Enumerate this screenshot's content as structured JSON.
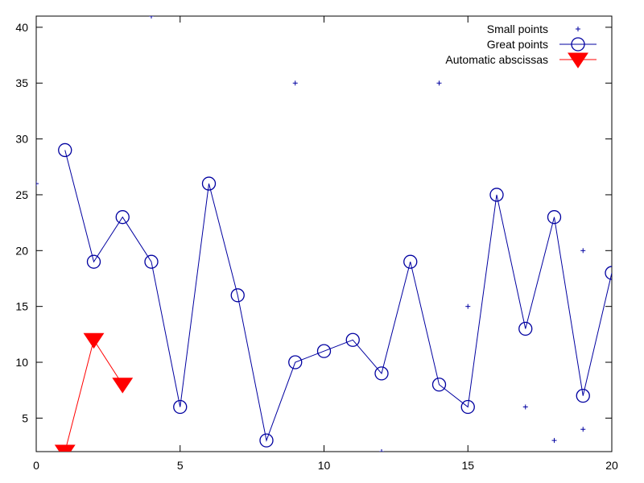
{
  "chart_data": {
    "type": "scatter",
    "xlim": [
      0,
      20
    ],
    "ylim": [
      2,
      41
    ],
    "x_ticks": [
      {
        "value": 0,
        "label": "0"
      },
      {
        "value": 5,
        "label": "5"
      },
      {
        "value": 10,
        "label": "10"
      },
      {
        "value": 15,
        "label": "15"
      },
      {
        "value": 20,
        "label": "20"
      }
    ],
    "y_ticks": [
      {
        "value": 5,
        "label": "5"
      },
      {
        "value": 10,
        "label": "10"
      },
      {
        "value": 15,
        "label": "15"
      },
      {
        "value": 20,
        "label": "20"
      },
      {
        "value": 25,
        "label": "25"
      },
      {
        "value": 30,
        "label": "30"
      },
      {
        "value": 35,
        "label": "35"
      },
      {
        "value": 40,
        "label": "40"
      }
    ],
    "grid": false,
    "legend_position": "top-right",
    "series": [
      {
        "name": "Small points",
        "marker": "plus",
        "line": false,
        "color": "#0000a0",
        "points": [
          [
            0,
            26
          ],
          [
            4,
            41
          ],
          [
            9,
            35
          ],
          [
            12,
            2
          ],
          [
            14,
            35
          ],
          [
            15,
            15
          ],
          [
            17,
            6
          ],
          [
            18,
            3
          ],
          [
            19,
            20
          ],
          [
            19,
            4
          ]
        ]
      },
      {
        "name": "Great points",
        "marker": "circle",
        "line": true,
        "color": "#0000a0",
        "points": [
          [
            1,
            29
          ],
          [
            2,
            19
          ],
          [
            3,
            23
          ],
          [
            4,
            19
          ],
          [
            5,
            6
          ],
          [
            6,
            26
          ],
          [
            7,
            16
          ],
          [
            8,
            3
          ],
          [
            9,
            10
          ],
          [
            10,
            11
          ],
          [
            11,
            12
          ],
          [
            12,
            9
          ],
          [
            13,
            19
          ],
          [
            14,
            8
          ],
          [
            15,
            6
          ],
          [
            16,
            25
          ],
          [
            17,
            13
          ],
          [
            18,
            23
          ],
          [
            19,
            7
          ],
          [
            20,
            18
          ]
        ]
      },
      {
        "name": "Automatic abscissas",
        "marker": "triangle-down",
        "line": true,
        "color": "#ff0000",
        "points": [
          [
            1,
            2
          ],
          [
            2,
            12
          ],
          [
            3,
            8
          ]
        ]
      }
    ]
  }
}
